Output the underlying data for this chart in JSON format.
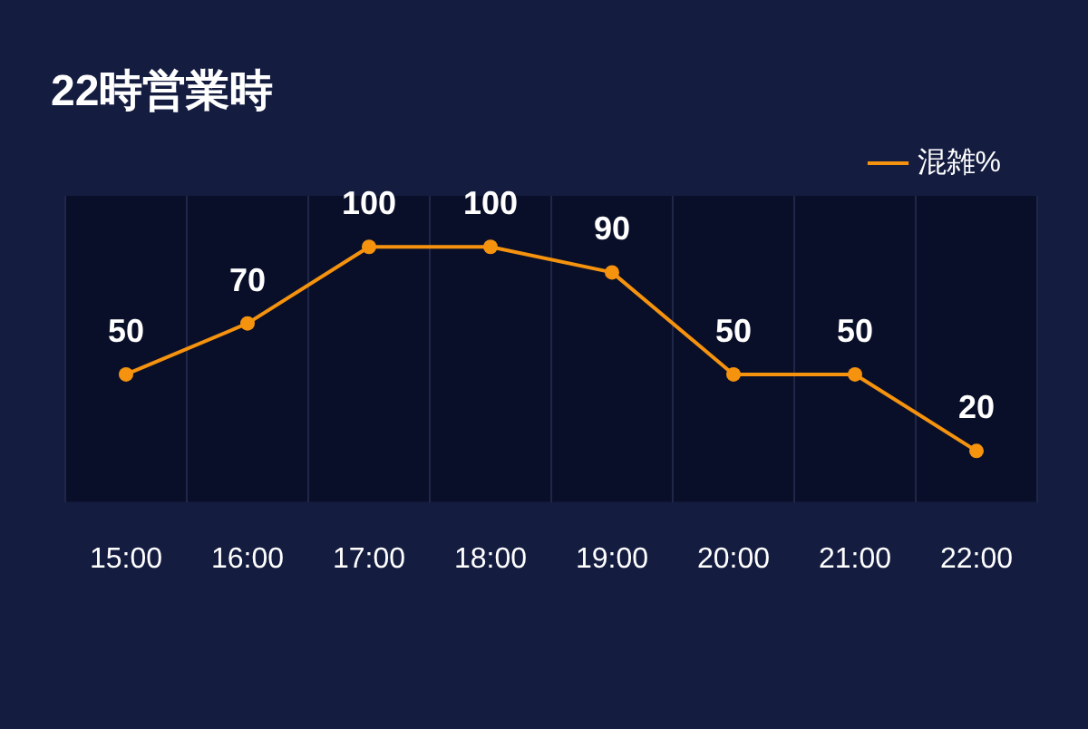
{
  "chart_data": {
    "type": "line",
    "title": "22時営業時",
    "categories": [
      "15:00",
      "16:00",
      "17:00",
      "18:00",
      "19:00",
      "20:00",
      "21:00",
      "22:00"
    ],
    "series": [
      {
        "name": "混雑%",
        "color": "#f5930f",
        "values": [
          50,
          70,
          100,
          100,
          90,
          50,
          50,
          20
        ]
      }
    ],
    "ylim": [
      0,
      120
    ],
    "grid": "x",
    "legend": "top right",
    "marker": "circle",
    "line_style": "solid",
    "data_labels": true,
    "tick_labels": "x"
  }
}
